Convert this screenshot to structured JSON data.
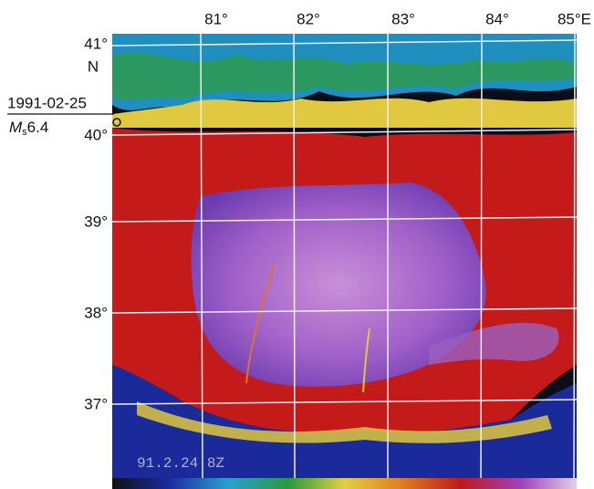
{
  "longitude_labels": [
    "81°",
    "82°",
    "83°",
    "84°",
    "85°E"
  ],
  "latitude_labels": [
    "41°",
    "40°",
    "39°",
    "38°",
    "37°"
  ],
  "latitude_hemisphere": "N",
  "event": {
    "date": "1991-02-25",
    "magnitude_symbol": "M",
    "magnitude_subscript": "s",
    "magnitude": "6.4"
  },
  "timestamp": "91.2.24.8Z"
}
